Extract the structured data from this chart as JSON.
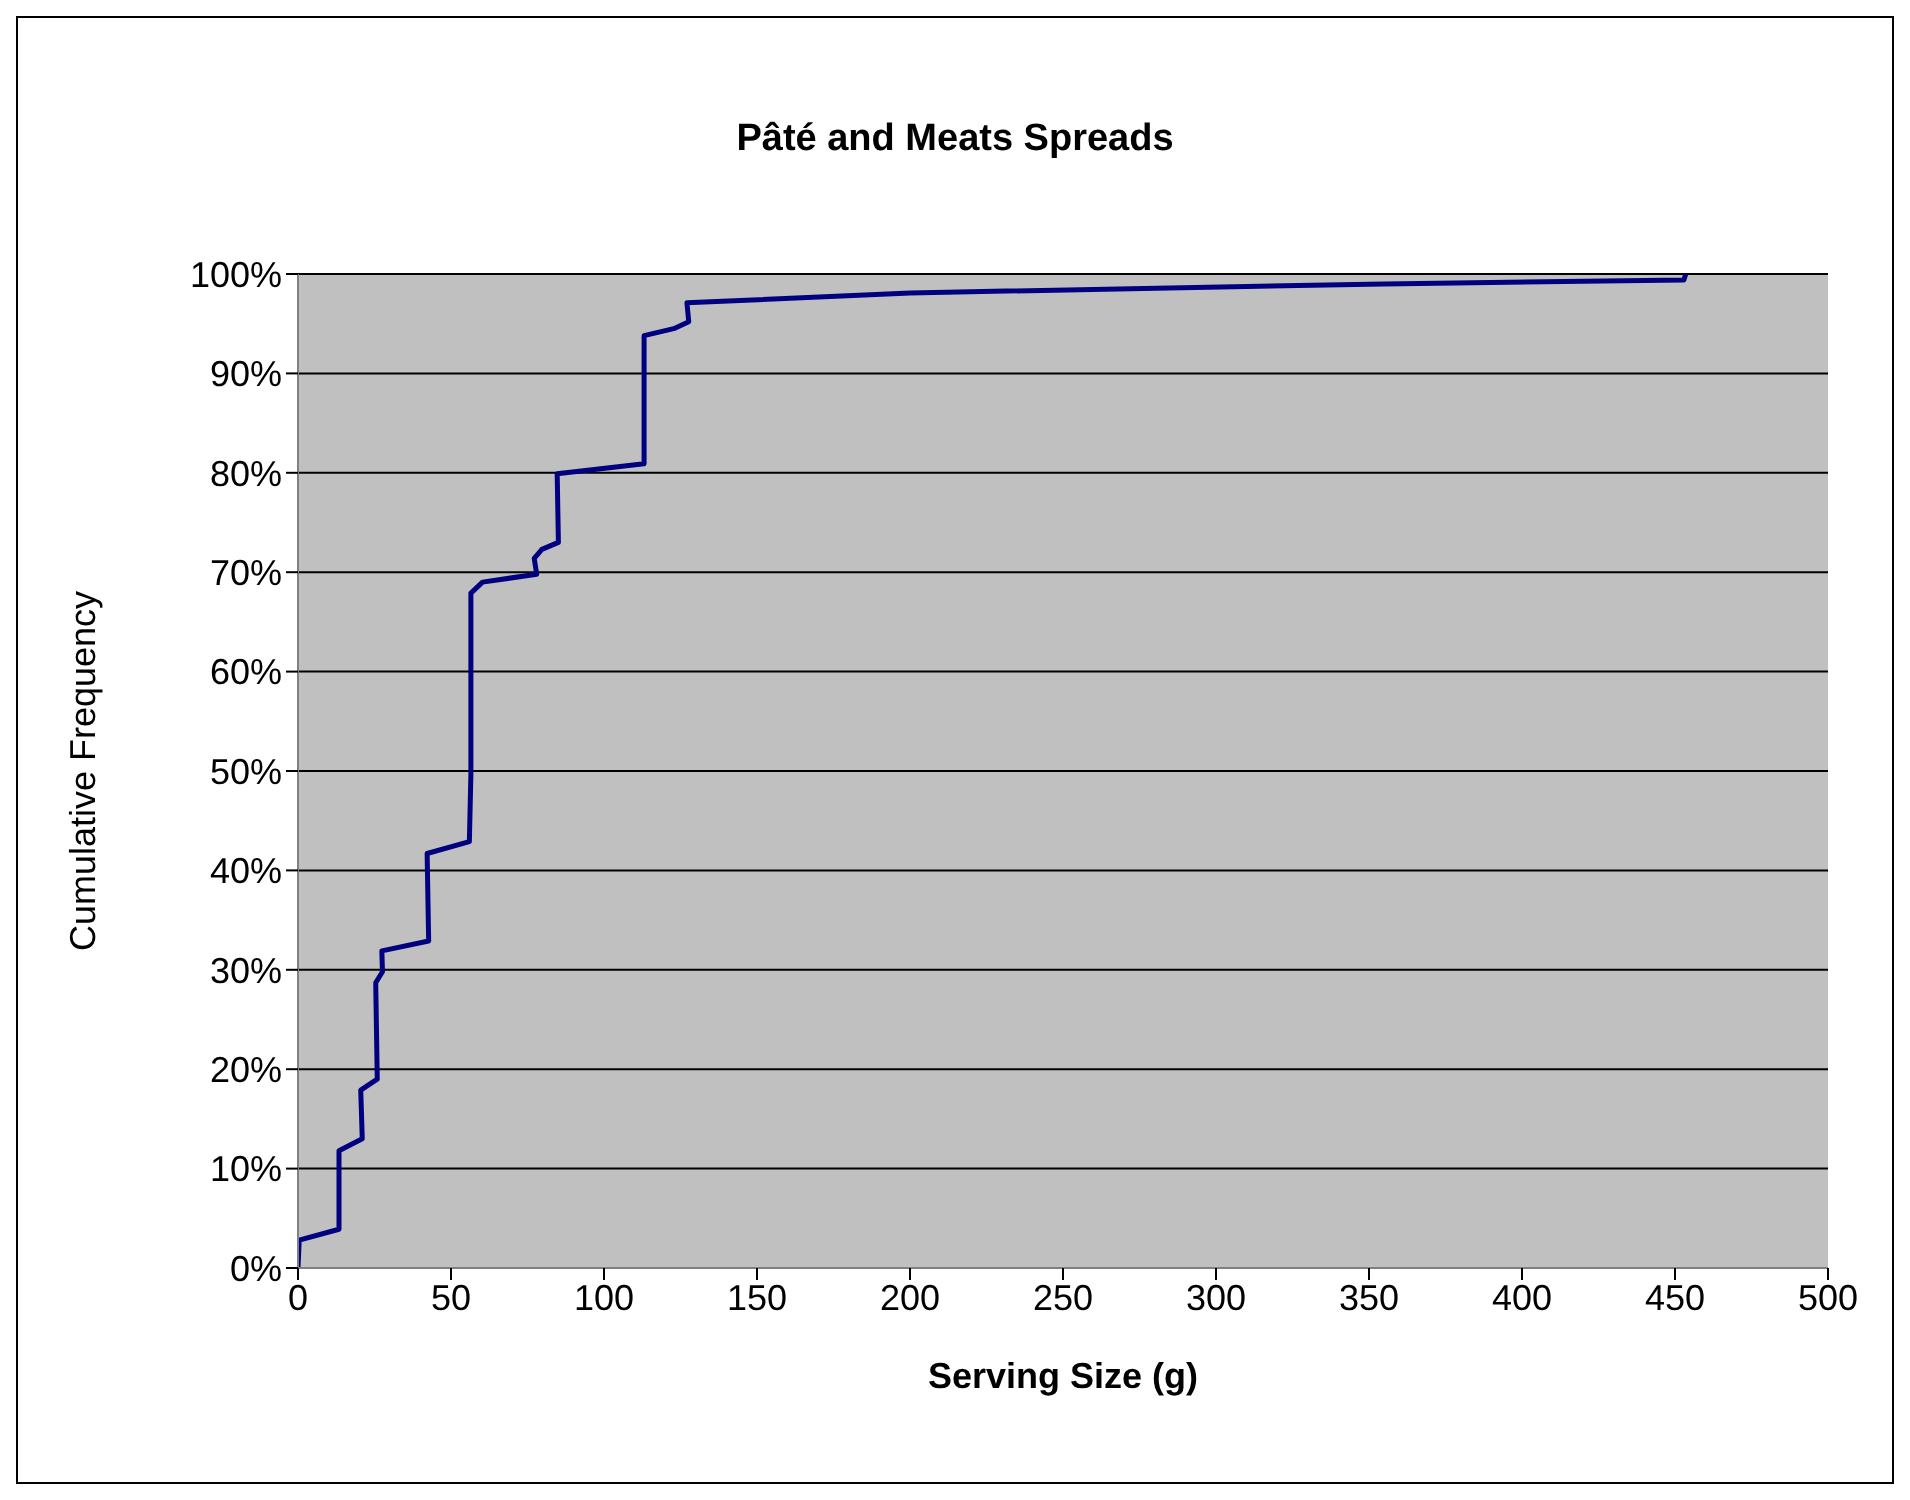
{
  "chart_data": {
    "type": "line",
    "title": "Pâté and Meats Spreads",
    "xlabel": "Serving Size (g)",
    "ylabel": "Cumulative Frequency",
    "x": [
      0,
      0.4,
      13.4,
      13.4,
      21,
      20.5,
      25.9,
      25.4,
      27.6,
      27.4,
      42.7,
      42.2,
      56,
      56.5,
      56.5,
      60.3,
      78,
      77.2,
      79.7,
      85.1,
      84.7,
      113.1,
      113.1,
      122.8,
      127.7,
      127.1,
      200,
      354.8,
      452.9,
      453.5
    ],
    "series": [
      {
        "color": "#000080",
        "values": [
          0,
          2.8,
          3.9,
          11.8,
          13,
          17.9,
          19,
          28.7,
          29.8,
          31.9,
          32.9,
          41.7,
          42.9,
          49.7,
          67.9,
          69,
          69.8,
          71.4,
          72.3,
          73,
          79.9,
          80.9,
          93.8,
          94.5,
          95.2,
          97.1,
          98.1,
          99,
          99.4,
          100
        ]
      }
    ],
    "xlim": [
      0,
      500
    ],
    "xticks": [
      0,
      50,
      100,
      150,
      200,
      250,
      300,
      350,
      400,
      450,
      500
    ],
    "ylim": [
      0,
      100
    ],
    "yticks": [
      {
        "value": 0,
        "label": "0%"
      },
      {
        "value": 10,
        "label": "10%"
      },
      {
        "value": 20,
        "label": "20%"
      },
      {
        "value": 30,
        "label": "30%"
      },
      {
        "value": 40,
        "label": "40%"
      },
      {
        "value": 50,
        "label": "50%"
      },
      {
        "value": 60,
        "label": "60%"
      },
      {
        "value": 70,
        "label": "70%"
      },
      {
        "value": 80,
        "label": "80%"
      },
      {
        "value": 90,
        "label": "90%"
      },
      {
        "value": 100,
        "label": "100%"
      }
    ],
    "grid": "y",
    "marker": "none",
    "line_style": "solid"
  }
}
